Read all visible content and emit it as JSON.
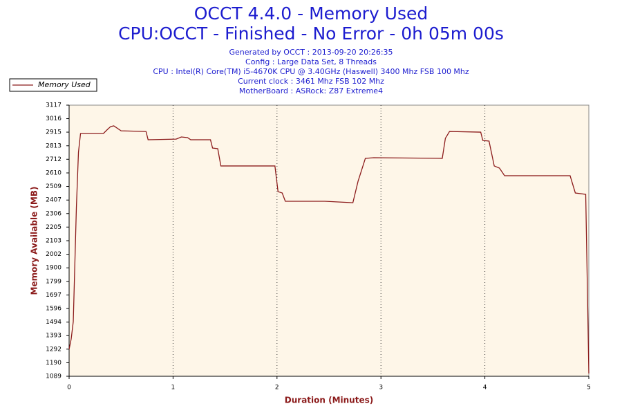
{
  "chart_data": {
    "type": "line",
    "title": "OCCT 4.4.0 - Memory Used",
    "subtitle": "CPU:OCCT - Finished - No Error - 0h 05m 00s",
    "info_lines": [
      "Generated by OCCT : 2013-09-20 20:26:35",
      "Config : Large Data Set, 8 Threads",
      "CPU : Intel(R) Core(TM) i5-4670K CPU @ 3.40GHz (Haswell) 3400 Mhz FSB 100 Mhz",
      "Current clock : 3461 Mhz FSB 102 Mhz",
      "MotherBoard : ASRock: Z87 Extreme4"
    ],
    "xlabel": "Duration (Minutes)",
    "ylabel": "Memory Available (MB)",
    "x": [
      0,
      0.02,
      0.04,
      0.07,
      0.09,
      0.11,
      0.33,
      0.37,
      0.4,
      0.43,
      0.5,
      0.74,
      0.76,
      1.03,
      1.08,
      1.14,
      1.17,
      1.36,
      1.38,
      1.43,
      1.46,
      1.98,
      2.01,
      2.05,
      2.08,
      2.46,
      2.73,
      2.78,
      2.85,
      2.93,
      3.59,
      3.62,
      3.66,
      3.96,
      3.98,
      4.04,
      4.09,
      4.14,
      4.19,
      4.82,
      4.87,
      4.97,
      4.99,
      5.0
    ],
    "series": [
      {
        "name": "Memory Used",
        "color": "#8b1a1a",
        "values": [
          1291,
          1368,
          1498,
          2351,
          2765,
          2905,
          2905,
          2936,
          2957,
          2962,
          2925,
          2920,
          2858,
          2863,
          2879,
          2874,
          2858,
          2858,
          2796,
          2791,
          2662,
          2662,
          2470,
          2460,
          2398,
          2398,
          2387,
          2548,
          2719,
          2724,
          2719,
          2869,
          2920,
          2915,
          2853,
          2848,
          2662,
          2646,
          2589,
          2589,
          2460,
          2450,
          1575,
          1110
        ]
      }
    ],
    "xlim": [
      0,
      5
    ],
    "xticks": [
      0,
      1,
      2,
      3,
      4,
      5
    ],
    "ylim": [
      1089,
      3117
    ],
    "yticks": [
      1089,
      1190,
      1292,
      1393,
      1494,
      1596,
      1697,
      1799,
      1900,
      2002,
      2103,
      2205,
      2306,
      2407,
      2509,
      2610,
      2712,
      2813,
      2915,
      3016,
      3117
    ],
    "grid": "x",
    "legend": "top-left",
    "plot_background": "#fef6e8"
  }
}
